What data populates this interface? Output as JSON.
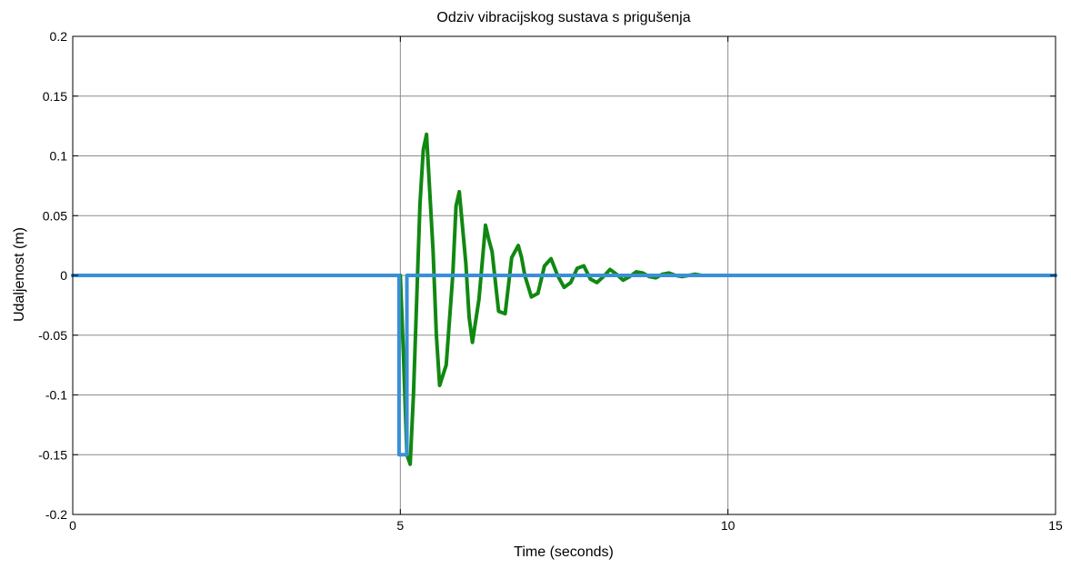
{
  "chart_data": {
    "type": "line",
    "title": "Odziv vibracijskog sustava s prigušenja",
    "xlabel": "Time (seconds)",
    "ylabel": "Udaljenost (m)",
    "xlim": [
      0,
      15
    ],
    "ylim": [
      -0.2,
      0.2
    ],
    "xticks": [
      0,
      5,
      10,
      15
    ],
    "xtick_labels": [
      "0",
      "5",
      "10",
      "15"
    ],
    "yticks": [
      -0.2,
      -0.15,
      -0.1,
      -0.05,
      0,
      0.05,
      0.1,
      0.15,
      0.2
    ],
    "ytick_labels": [
      "-0.2",
      "-0.15",
      "-0.1",
      "-0.05",
      "0",
      "0.05",
      "0.1",
      "0.15",
      "0.2"
    ],
    "grid": true,
    "legend": "none",
    "series": [
      {
        "color": "#118811",
        "x": [
          0,
          5.0,
          5.05,
          5.1,
          5.15,
          5.2,
          5.3,
          5.35,
          5.4,
          5.5,
          5.55,
          5.6,
          5.7,
          5.8,
          5.85,
          5.9,
          6.0,
          6.05,
          6.1,
          6.2,
          6.3,
          6.35,
          6.4,
          6.5,
          6.6,
          6.7,
          6.8,
          6.85,
          6.9,
          7.0,
          7.1,
          7.2,
          7.3,
          7.4,
          7.5,
          7.6,
          7.7,
          7.8,
          7.9,
          8.0,
          8.1,
          8.2,
          8.3,
          8.4,
          8.5,
          8.6,
          8.7,
          8.8,
          8.9,
          9.0,
          9.1,
          9.2,
          9.3,
          9.4,
          9.5,
          9.6,
          9.7,
          9.8,
          9.9,
          10.0,
          10.2,
          10.4,
          10.6,
          10.8,
          11.0,
          11.5,
          12.0,
          12.5,
          13.0,
          13.5,
          14.0,
          14.5,
          15.0
        ],
        "y": [
          0,
          0,
          -0.07,
          -0.15,
          -0.158,
          -0.1,
          0.06,
          0.105,
          0.118,
          0.02,
          -0.05,
          -0.092,
          -0.075,
          0.0,
          0.058,
          0.07,
          0.01,
          -0.035,
          -0.056,
          -0.02,
          0.042,
          0.03,
          0.02,
          -0.03,
          -0.032,
          0.015,
          0.025,
          0.015,
          0.0,
          -0.018,
          -0.015,
          0.008,
          0.014,
          0.0,
          -0.01,
          -0.006,
          0.006,
          0.008,
          -0.003,
          -0.006,
          -0.001,
          0.005,
          0.001,
          -0.004,
          -0.001,
          0.003,
          0.002,
          -0.001,
          -0.002,
          0.001,
          0.002,
          0.0,
          -0.001,
          0.0,
          0.001,
          0.0,
          0.0,
          0.0,
          0.0,
          0.0,
          0.0,
          0.0,
          0.0,
          0.0,
          0.0,
          0.0,
          0.0,
          0.0,
          0.0,
          0.0,
          0.0,
          0.0,
          0.0
        ]
      },
      {
        "color": "#3a8fd6",
        "x": [
          0,
          4.98,
          4.98,
          5.1,
          5.1,
          15.0
        ],
        "y": [
          0,
          0,
          -0.15,
          -0.15,
          0,
          0
        ]
      }
    ]
  }
}
